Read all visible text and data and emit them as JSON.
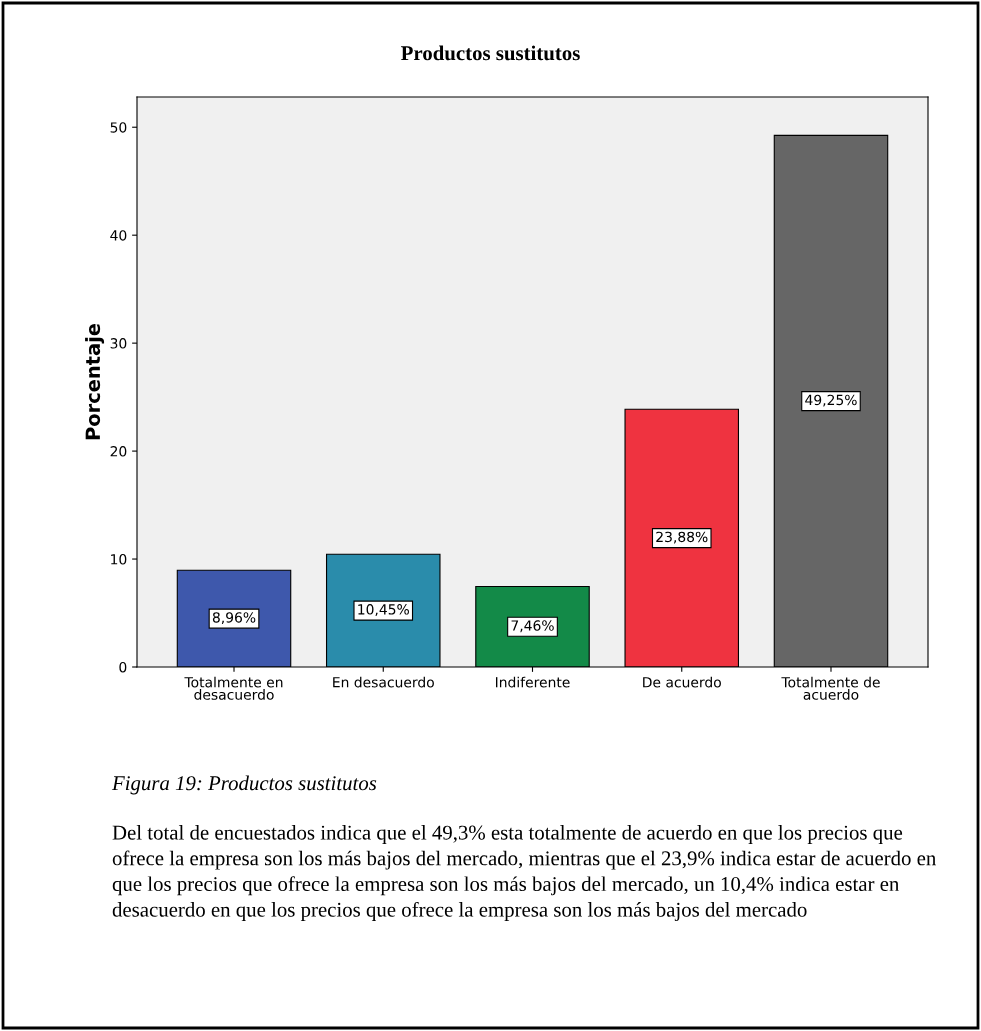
{
  "chart_data": {
    "type": "bar",
    "title": "Productos sustitutos",
    "ylabel": "Porcentaje",
    "categories": [
      "Totalmente en\ndesacuerdo",
      "En desacuerdo",
      "Indiferente",
      "De acuerdo",
      "Totalmente de\nacuerdo"
    ],
    "values": [
      8.96,
      10.45,
      7.46,
      23.88,
      49.25
    ],
    "colors": [
      "#3e58ac",
      "#2a8cab",
      "#138a48",
      "#ef3340",
      "#666666"
    ],
    "value_labels": [
      "8,96%",
      "10,45%",
      "7,46%",
      "23,88%",
      "49,25%"
    ],
    "ylim": [
      0,
      52.8
    ],
    "yticks": [
      0,
      10,
      20,
      30,
      40,
      50
    ],
    "grid": false,
    "legend": false,
    "annotations": [
      "Figura 19: Productos sustitutos",
      "Del total de encuestados indica que el 49,3% esta totalmente de acuerdo en que los precios que ofrece la empresa son los más bajos del mercado, mientras que el 23,9% indica estar de acuerdo en que los precios que ofrece la empresa son los más bajos del mercado, un 10,4% indica estar en desacuerdo en que los precios que ofrece la empresa son los más bajos del mercado"
    ]
  }
}
